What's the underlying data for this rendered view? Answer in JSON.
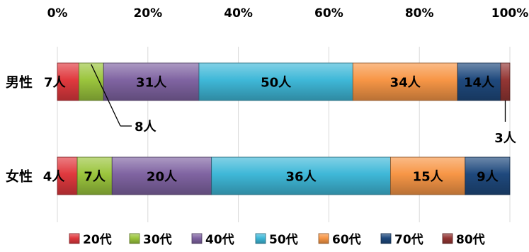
{
  "chart_data": {
    "type": "bar",
    "orientation": "horizontal",
    "stacked": "percent",
    "xlim": [
      0,
      100
    ],
    "xticks": [
      "0%",
      "20%",
      "40%",
      "60%",
      "80%",
      "100%"
    ],
    "grid": true,
    "legend_position": "bottom",
    "categories": [
      "男性",
      "女性"
    ],
    "series": [
      {
        "name": "20代",
        "color": "#e0393e",
        "values": [
          7,
          4
        ],
        "labels": [
          "7人",
          "4人"
        ]
      },
      {
        "name": "30代",
        "color": "#9bc53d",
        "values": [
          8,
          7
        ],
        "labels": [
          "8人",
          "7人"
        ]
      },
      {
        "name": "40代",
        "color": "#8064a2",
        "values": [
          31,
          20
        ],
        "labels": [
          "31人",
          "20人"
        ]
      },
      {
        "name": "50代",
        "color": "#3fb8d8",
        "values": [
          50,
          36
        ],
        "labels": [
          "50人",
          "36人"
        ]
      },
      {
        "name": "60代",
        "color": "#f79646",
        "values": [
          34,
          15
        ],
        "labels": [
          "34人",
          "15人"
        ]
      },
      {
        "name": "70代",
        "color": "#1f497d",
        "values": [
          14,
          9
        ],
        "labels": [
          "14人",
          "9人"
        ]
      },
      {
        "name": "80代",
        "color": "#943634",
        "values": [
          3,
          0
        ],
        "labels": [
          "3人",
          ""
        ]
      }
    ]
  }
}
